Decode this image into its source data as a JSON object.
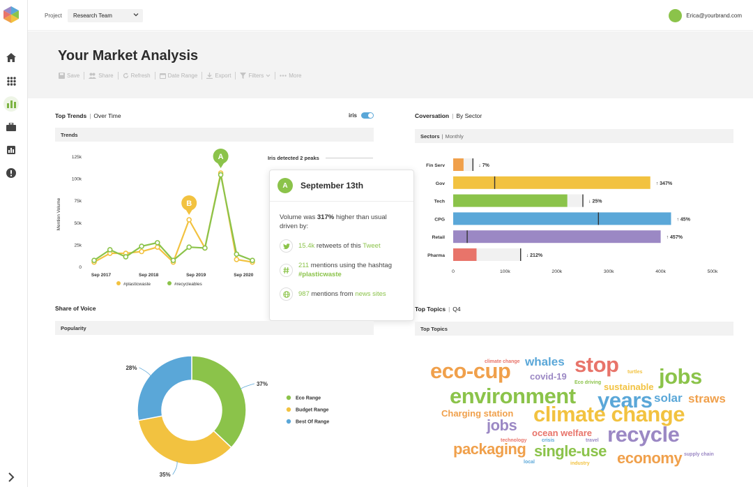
{
  "topbar": {
    "project_label": "Project",
    "project_value": "Research Team",
    "user_email": "Erica@yourbrand.com"
  },
  "sidebar": {
    "items": [
      {
        "icon": "home-icon"
      },
      {
        "icon": "apps-grid-icon"
      },
      {
        "icon": "bar-chart-icon",
        "active": true
      },
      {
        "icon": "briefcase-icon"
      },
      {
        "icon": "report-icon"
      },
      {
        "icon": "alert-icon"
      }
    ]
  },
  "header": {
    "title": "Your Market Analysis",
    "toolbar": {
      "save": "Save",
      "share": "Share",
      "refresh": "Refresh",
      "date_range": "Date Range",
      "export": "Export",
      "filters": "Filters",
      "more": "More"
    }
  },
  "top_trends": {
    "title": "Top Trends",
    "subtitle": "Over Time",
    "iris_label": "iris",
    "panel_title": "Trends",
    "peaks_text": "Iris detected 2 peaks",
    "peak_a": "A",
    "peak_b": "B"
  },
  "popup": {
    "badge": "A",
    "date": "September 13th",
    "desc_pre": "Volume was ",
    "desc_bold": "317%",
    "desc_post": " higher than usual driven by:",
    "rows": [
      {
        "icon": "twitter-icon",
        "num": "15.4k",
        "text": " retweets of this ",
        "link": "Tweet"
      },
      {
        "icon": "hashtag-icon",
        "num": "211",
        "text": " mentions using the hashtag ",
        "link": "#plasticwaste"
      },
      {
        "icon": "globe-icon",
        "num": "987",
        "text": " mentions from ",
        "link": "news sites"
      }
    ]
  },
  "conversation": {
    "title": "Coversation",
    "subtitle": "By Sector",
    "panel_title": "Sectors",
    "panel_sub": "Monthly"
  },
  "share_of_voice": {
    "title": "Share of Voice",
    "panel_title": "Popularity"
  },
  "top_topics": {
    "title": "Top Topics",
    "subtitle": "Q4",
    "panel_title": "Top Topics",
    "words": [
      {
        "text": "climate change",
        "color": "#e8746a",
        "weight": 1
      },
      {
        "text": "whales",
        "color": "#5aa7d8",
        "weight": 3
      },
      {
        "text": "stop",
        "color": "#e8746a",
        "weight": 5
      },
      {
        "text": "turtles",
        "color": "#f2c240",
        "weight": 1
      },
      {
        "text": "eco-cup",
        "color": "#f0a04b",
        "weight": 5
      },
      {
        "text": "covid-19",
        "color": "#9b88c4",
        "weight": 2
      },
      {
        "text": "Eco driving",
        "color": "#8bc34a",
        "weight": 1
      },
      {
        "text": "sustainable",
        "color": "#f2c240",
        "weight": 2
      },
      {
        "text": "jobs",
        "color": "#8bc34a",
        "weight": 5
      },
      {
        "text": "environment",
        "color": "#8bc34a",
        "weight": 5
      },
      {
        "text": "years",
        "color": "#5aa7d8",
        "weight": 5
      },
      {
        "text": "solar",
        "color": "#5aa7d8",
        "weight": 3
      },
      {
        "text": "straws",
        "color": "#f0a04b",
        "weight": 3
      },
      {
        "text": "Charging station",
        "color": "#f0a04b",
        "weight": 2
      },
      {
        "text": "climate change",
        "color": "#f2c240",
        "weight": 5
      },
      {
        "text": "jobs",
        "color": "#9b88c4",
        "weight": 4
      },
      {
        "text": "ocean welfare",
        "color": "#e8746a",
        "weight": 2
      },
      {
        "text": "recycle",
        "color": "#9b88c4",
        "weight": 5
      },
      {
        "text": "technology",
        "color": "#e8746a",
        "weight": 1
      },
      {
        "text": "crisis",
        "color": "#5aa7d8",
        "weight": 1
      },
      {
        "text": "travel",
        "color": "#9b88c4",
        "weight": 1
      },
      {
        "text": "packaging",
        "color": "#f0a04b",
        "weight": 4
      },
      {
        "text": "single-use",
        "color": "#8bc34a",
        "weight": 4
      },
      {
        "text": "supply chain",
        "color": "#9b88c4",
        "weight": 1
      },
      {
        "text": "economy",
        "color": "#f0a04b",
        "weight": 4
      },
      {
        "text": "local",
        "color": "#5aa7d8",
        "weight": 1
      },
      {
        "text": "industry",
        "color": "#f2c240",
        "weight": 1
      }
    ]
  },
  "colors": {
    "green": "#8bc34a",
    "yellow": "#f2c240",
    "blue": "#5aa7d8",
    "orange": "#f0a04b",
    "purple": "#9b88c4",
    "red": "#e8746a"
  },
  "chart_data": [
    {
      "type": "line",
      "title": "Trends",
      "ylabel": "Mention Volume",
      "xlabel": "",
      "ylim": [
        0,
        125000
      ],
      "yticks": [
        "0",
        "25k",
        "50k",
        "75k",
        "100k",
        "125k"
      ],
      "xticks": [
        "Sep 2017",
        "Sep 2018",
        "Sep 2019",
        "Sep 2020"
      ],
      "x": [
        "2017-09",
        "2018-01",
        "2018-05",
        "2018-09",
        "2019-01",
        "2019-05",
        "2019-09",
        "2020-01",
        "2020-05",
        "2020-09",
        "2021-01"
      ],
      "series": [
        {
          "name": "#plasticwaste",
          "color": "#f2c240",
          "values": [
            5000,
            15000,
            15000,
            17000,
            22000,
            5000,
            53000,
            21000,
            106000,
            8000,
            5000
          ]
        },
        {
          "name": "#recycleables",
          "color": "#8bc34a",
          "values": [
            7000,
            19000,
            11000,
            23000,
            27000,
            7000,
            22000,
            21000,
            104000,
            14000,
            7000
          ]
        }
      ],
      "annotations": [
        {
          "label": "A",
          "x": "2020-05",
          "y": 106000,
          "color": "#8bc34a"
        },
        {
          "label": "B",
          "x": "2019-09",
          "y": 53000,
          "color": "#f2c240"
        }
      ]
    },
    {
      "type": "bar",
      "orientation": "horizontal",
      "title": "Sectors",
      "categories": [
        "Fin Serv",
        "Gov",
        "Tech",
        "CPG",
        "Retail",
        "Pharma"
      ],
      "values": [
        20000,
        380000,
        220000,
        420000,
        400000,
        45000
      ],
      "previous": [
        38000,
        80000,
        250000,
        280000,
        27000,
        130000
      ],
      "changes": [
        "↓ 7%",
        "↑ 347%",
        "↓ 25%",
        "↑ 45%",
        "↑ 457%",
        "↓ 212%"
      ],
      "colors": [
        "#f0a04b",
        "#f2c240",
        "#8bc34a",
        "#5aa7d8",
        "#9b88c4",
        "#e8746a"
      ],
      "xlim": [
        0,
        500000
      ],
      "xticks": [
        "0",
        "100k",
        "200k",
        "300k",
        "400k",
        "500k"
      ]
    },
    {
      "type": "pie",
      "title": "Popularity",
      "categories": [
        "Eco Range",
        "Budget Range",
        "Best Of Range"
      ],
      "values": [
        37,
        35,
        28
      ],
      "labels": [
        "37%",
        "35%",
        "28%"
      ],
      "colors": [
        "#8bc34a",
        "#f2c240",
        "#5aa7d8"
      ]
    }
  ]
}
